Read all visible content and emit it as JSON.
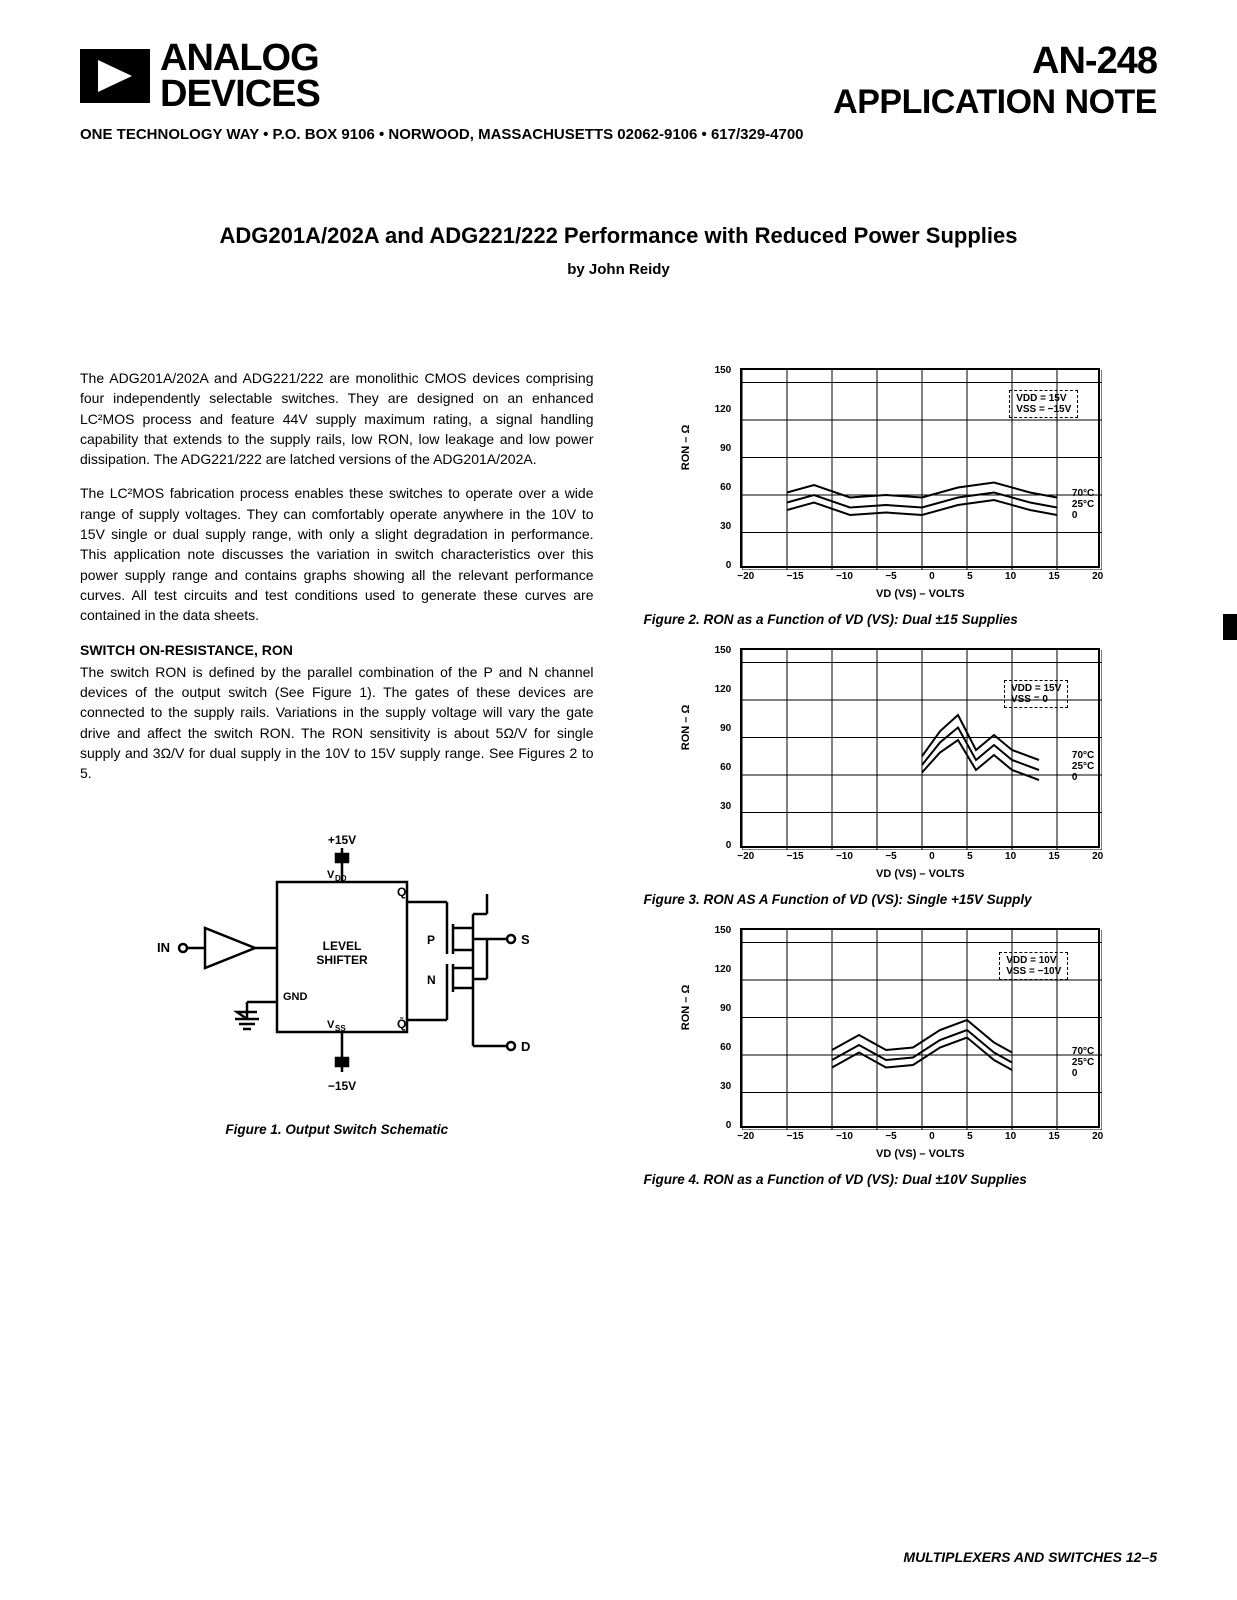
{
  "header": {
    "logo_text_line1": "ANALOG",
    "logo_text_line2": "DEVICES",
    "doc_number": "AN-248",
    "doc_type": "APPLICATION NOTE",
    "address": "ONE TECHNOLOGY WAY • P.O. BOX 9106 • NORWOOD, MASSACHUSETTS 02062-9106 • 617/329-4700"
  },
  "title": "ADG201A/202A and ADG221/222 Performance with Reduced Power Supplies",
  "author": "by John Reidy",
  "body": {
    "p1": "The ADG201A/202A and ADG221/222 are monolithic CMOS devices comprising four independently selectable switches. They are designed on an enhanced LC²MOS process and feature 44V supply maximum rating, a signal handling capability that extends to the supply rails, low RON, low leakage and low power dissipation. The ADG221/222 are latched versions of the ADG201A/202A.",
    "p2": "The LC²MOS fabrication process enables these switches to operate over a wide range of supply voltages. They can comfortably operate anywhere in the 10V to 15V single or dual supply range, with only a slight degradation in performance. This application note discusses the variation in switch characteristics over this power supply range and contains graphs showing all the relevant performance curves. All test circuits and test conditions used to generate these curves are contained in the data sheets.",
    "section_head": "SWITCH ON-RESISTANCE, RON",
    "p3": "The switch RON is defined by the parallel combination of the P and N channel devices of the output switch (See Figure 1). The gates of these devices are connected to the supply rails. Variations in the supply voltage will vary the gate drive and affect the switch RON. The RON sensitivity is about 5Ω/V for single supply and 3Ω/V for dual supply in the 10V to 15V supply range. See Figures 2 to 5."
  },
  "fig1": {
    "caption": "Figure 1. Output Switch Schematic",
    "labels": {
      "top": "+15V",
      "vdd": "VDD",
      "q": "Q",
      "in": "IN",
      "level_shifter": "LEVEL\nSHIFTER",
      "p": "P",
      "n": "N",
      "s": "S",
      "gnd": "GND",
      "vss": "VSS",
      "qbar": "Q̄",
      "d": "D",
      "bottom": "−15V"
    }
  },
  "charts_common": {
    "ylabel": "RON – Ω",
    "xlabel": "VD (VS) – VOLTS",
    "xticks": [
      "−20",
      "−15",
      "−10",
      "−5",
      "0",
      "5",
      "10",
      "15",
      "20"
    ],
    "yticks": [
      "150",
      "120",
      "90",
      "60",
      "30",
      "0"
    ],
    "xlim": [
      -20,
      20
    ],
    "ylim": [
      0,
      160
    ],
    "grid_color": "#000000",
    "line_color": "#000000",
    "line_width": 2,
    "background_color": "#ffffff",
    "curve_labels": [
      "70°C",
      "25°C",
      "0"
    ]
  },
  "fig2": {
    "note_line1": "VDD = 15V",
    "note_line2": "VSS = −15V",
    "caption": "Figure 2. RON as a Function of VD (VS): Dual ±15 Supplies",
    "curves": [
      {
        "label": "70°C",
        "points": [
          [
            -15,
            62
          ],
          [
            -12,
            68
          ],
          [
            -8,
            58
          ],
          [
            -4,
            60
          ],
          [
            0,
            58
          ],
          [
            4,
            66
          ],
          [
            8,
            70
          ],
          [
            12,
            62
          ],
          [
            15,
            58
          ]
        ]
      },
      {
        "label": "25°C",
        "points": [
          [
            -15,
            54
          ],
          [
            -12,
            60
          ],
          [
            -8,
            50
          ],
          [
            -4,
            52
          ],
          [
            0,
            50
          ],
          [
            4,
            58
          ],
          [
            8,
            62
          ],
          [
            12,
            54
          ],
          [
            15,
            50
          ]
        ]
      },
      {
        "label": "0",
        "points": [
          [
            -15,
            48
          ],
          [
            -12,
            54
          ],
          [
            -8,
            44
          ],
          [
            -4,
            46
          ],
          [
            0,
            44
          ],
          [
            4,
            52
          ],
          [
            8,
            56
          ],
          [
            12,
            48
          ],
          [
            15,
            44
          ]
        ]
      }
    ]
  },
  "fig3": {
    "note_line1": "VDD = 15V",
    "note_line2": "VSS = 0",
    "caption": "Figure 3. RON AS A Function of VD (VS): Single +15V Supply",
    "curves": [
      {
        "label": "70°C",
        "points": [
          [
            0,
            75
          ],
          [
            2,
            95
          ],
          [
            4,
            108
          ],
          [
            6,
            80
          ],
          [
            8,
            92
          ],
          [
            10,
            80
          ],
          [
            13,
            72
          ]
        ]
      },
      {
        "label": "25°C",
        "points": [
          [
            0,
            68
          ],
          [
            2,
            86
          ],
          [
            4,
            98
          ],
          [
            6,
            72
          ],
          [
            8,
            84
          ],
          [
            10,
            72
          ],
          [
            13,
            64
          ]
        ]
      },
      {
        "label": "0",
        "points": [
          [
            0,
            62
          ],
          [
            2,
            78
          ],
          [
            4,
            88
          ],
          [
            6,
            64
          ],
          [
            8,
            76
          ],
          [
            10,
            64
          ],
          [
            13,
            56
          ]
        ]
      }
    ]
  },
  "fig4": {
    "note_line1": "VDD = 10V",
    "note_line2": "VSS = −10V",
    "caption": "Figure 4. RON as a Function of VD (VS): Dual ±10V Supplies",
    "curves": [
      {
        "label": "70°C",
        "points": [
          [
            -10,
            64
          ],
          [
            -7,
            76
          ],
          [
            -4,
            64
          ],
          [
            -1,
            66
          ],
          [
            2,
            80
          ],
          [
            5,
            88
          ],
          [
            8,
            70
          ],
          [
            10,
            62
          ]
        ]
      },
      {
        "label": "25°C",
        "points": [
          [
            -10,
            56
          ],
          [
            -7,
            68
          ],
          [
            -4,
            56
          ],
          [
            -1,
            58
          ],
          [
            2,
            72
          ],
          [
            5,
            80
          ],
          [
            8,
            62
          ],
          [
            10,
            54
          ]
        ]
      },
      {
        "label": "0",
        "points": [
          [
            -10,
            50
          ],
          [
            -7,
            62
          ],
          [
            -4,
            50
          ],
          [
            -1,
            52
          ],
          [
            2,
            66
          ],
          [
            5,
            74
          ],
          [
            8,
            56
          ],
          [
            10,
            48
          ]
        ]
      }
    ]
  },
  "footer": "MULTIPLEXERS AND SWITCHES   12–5"
}
